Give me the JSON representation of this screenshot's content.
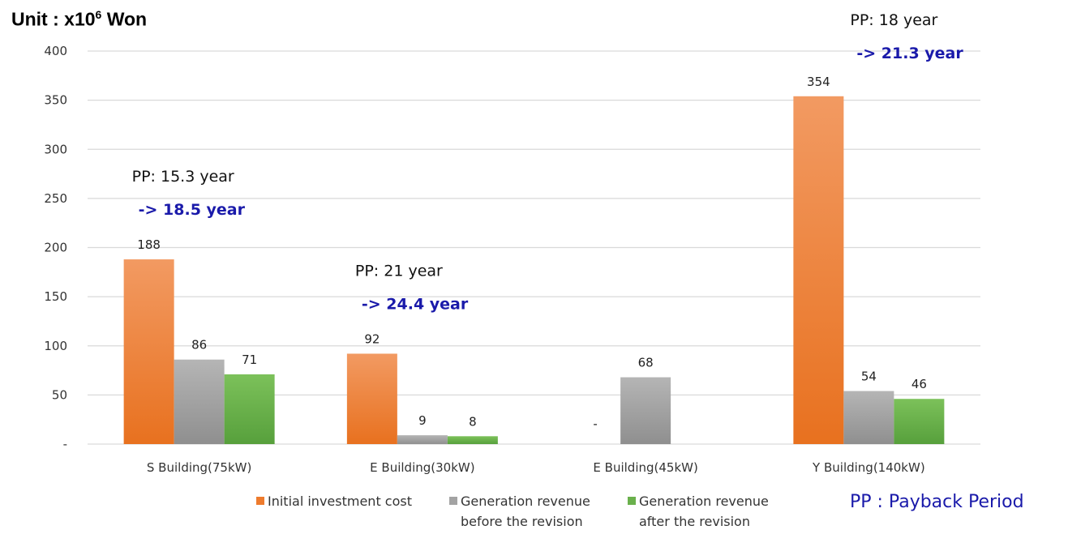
{
  "unit_label": {
    "prefix": "Unit : x10",
    "exponent": "6",
    "suffix": " Won"
  },
  "pp_note": "PP : Payback Period",
  "colors": {
    "initial": "#ee7b2d",
    "before": "#a3a3a3",
    "after": "#6ab04c",
    "revision_text": "#1a1aaa",
    "grid": "#d9d9d9"
  },
  "chart_data": {
    "type": "bar",
    "ylim": [
      0,
      400
    ],
    "yticks": [
      {
        "value": 0,
        "label": "-"
      },
      {
        "value": 50,
        "label": "50"
      },
      {
        "value": 100,
        "label": "100"
      },
      {
        "value": 150,
        "label": "150"
      },
      {
        "value": 200,
        "label": "200"
      },
      {
        "value": 250,
        "label": "250"
      },
      {
        "value": 300,
        "label": "300"
      },
      {
        "value": 350,
        "label": "350"
      },
      {
        "value": 400,
        "label": "400"
      }
    ],
    "grid": true,
    "legend_position": "bottom",
    "categories": [
      "S Building(75kW)",
      "E Building(30kW)",
      "E Building(45kW)",
      "Y Building(140kW)"
    ],
    "series": [
      {
        "key": "initial",
        "legend": [
          "Initial investment cost"
        ],
        "values": [
          188,
          92,
          0,
          354
        ],
        "labels": [
          "188",
          "92",
          "-",
          "354"
        ]
      },
      {
        "key": "before",
        "legend": [
          "Generation revenue",
          "before the revision"
        ],
        "values": [
          86,
          9,
          68,
          54
        ],
        "labels": [
          "86",
          "9",
          "68",
          "54"
        ]
      },
      {
        "key": "after",
        "legend": [
          "Generation revenue",
          "after the revision"
        ],
        "values": [
          71,
          8,
          null,
          46
        ],
        "labels": [
          "71",
          "8",
          "",
          "46"
        ]
      }
    ],
    "annotations": [
      {
        "category": 0,
        "pp": "PP: 15.3 year",
        "revised": "-> 18.5 year"
      },
      {
        "category": 1,
        "pp": "PP: 21 year",
        "revised": "-> 24.4 year"
      },
      {
        "category": 3,
        "pp": "PP: 18 year",
        "revised": "-> 21.3 year"
      }
    ]
  }
}
